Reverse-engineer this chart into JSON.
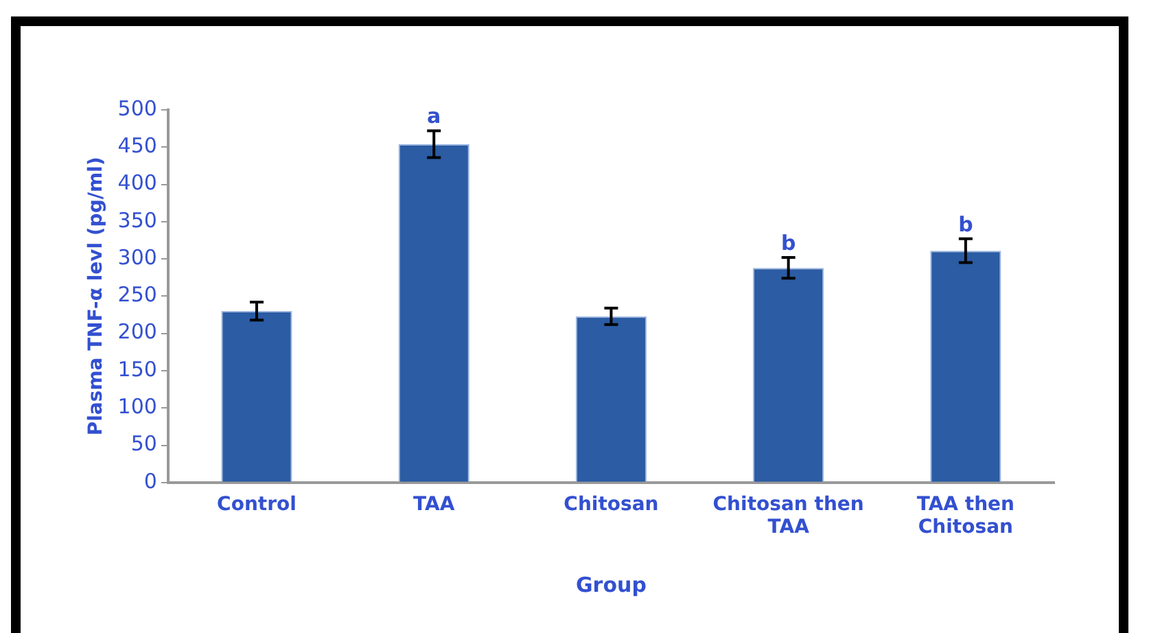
{
  "chart_data": {
    "type": "bar",
    "xlabel": "Group",
    "ylabel": "Plasma TNF-α levl (pg/ml)",
    "categories": [
      "Control",
      "TAA",
      "Chitosan",
      "Chitosan then TAA",
      "TAA then Chitosan"
    ],
    "values": [
      230,
      454,
      223,
      288,
      311
    ],
    "errors": [
      12,
      18,
      11,
      14,
      16
    ],
    "color": "#2b5ca4",
    "ylim": [
      0,
      500
    ],
    "yticks": [
      0,
      50,
      100,
      150,
      200,
      250,
      300,
      350,
      400,
      450,
      500
    ],
    "grid": false,
    "legend": false,
    "annotations": [
      {
        "text": "a",
        "x": "TAA",
        "y": 472
      },
      {
        "text": "b",
        "x": "Chitosan then TAA",
        "y": 302
      },
      {
        "text": "b",
        "x": "TAA then Chitosan",
        "y": 327
      }
    ]
  }
}
